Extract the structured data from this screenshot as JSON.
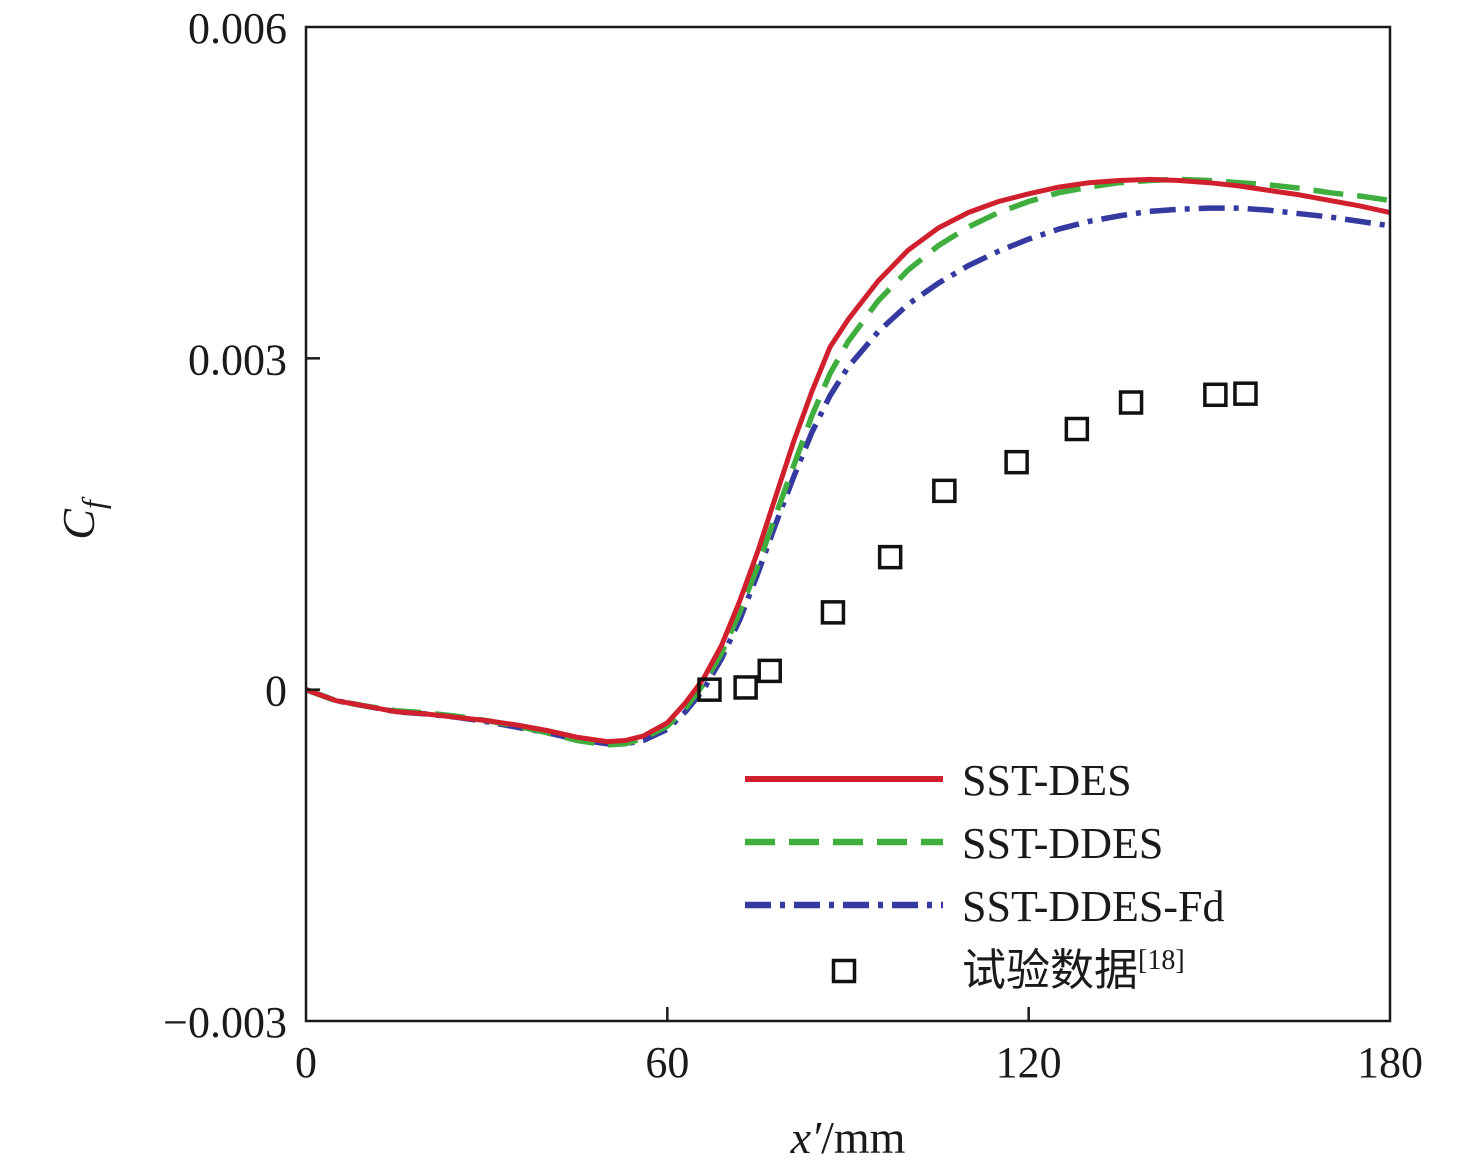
{
  "chart_data": {
    "type": "line",
    "title": "",
    "xlabel": {
      "var": "x′",
      "unit": "/mm"
    },
    "ylabel": {
      "var": "C",
      "sub": "f"
    },
    "xlim": [
      0,
      180
    ],
    "ylim": [
      -0.003,
      0.006
    ],
    "xticks": [
      0,
      60,
      120,
      180
    ],
    "xtick_labels": [
      "0",
      "60",
      "120",
      "180"
    ],
    "yticks": [
      -0.003,
      0,
      0.003,
      0.006
    ],
    "ytick_labels": [
      "−0.003",
      "0",
      "0.003",
      "0.006"
    ],
    "grid": false,
    "legend_position": "lower-right",
    "series": [
      {
        "name": "SST-DES",
        "style": "solid",
        "color": "#d0202e",
        "x": [
          0,
          5,
          10,
          15,
          20,
          25,
          30,
          35,
          40,
          45,
          50,
          53,
          56,
          60,
          63,
          66,
          69,
          72,
          75,
          78,
          81,
          84,
          87,
          90,
          95,
          100,
          105,
          110,
          115,
          120,
          125,
          130,
          135,
          140,
          145,
          150,
          155,
          160,
          165,
          170,
          175,
          180
        ],
        "y": [
          0,
          -0.0001,
          -0.00015,
          -0.0002,
          -0.00022,
          -0.00025,
          -0.00028,
          -0.00032,
          -0.00037,
          -0.00043,
          -0.00047,
          -0.00046,
          -0.00042,
          -0.0003,
          -0.00012,
          0.0001,
          0.0004,
          0.0008,
          0.00125,
          0.00175,
          0.00225,
          0.0027,
          0.0031,
          0.00335,
          0.0037,
          0.00398,
          0.00418,
          0.00432,
          0.00442,
          0.00449,
          0.00455,
          0.00459,
          0.00461,
          0.00462,
          0.00461,
          0.00459,
          0.00456,
          0.00452,
          0.00448,
          0.00443,
          0.00438,
          0.00432
        ]
      },
      {
        "name": "SST-DDES",
        "style": "dashed",
        "color": "#3fae3f",
        "x": [
          0,
          5,
          10,
          15,
          20,
          25,
          30,
          35,
          40,
          45,
          50,
          53,
          56,
          60,
          63,
          66,
          69,
          72,
          75,
          78,
          81,
          84,
          87,
          90,
          95,
          100,
          105,
          110,
          115,
          120,
          125,
          130,
          135,
          140,
          145,
          150,
          155,
          160,
          165,
          170,
          175,
          180
        ],
        "y": [
          0,
          -0.0001,
          -0.00015,
          -0.00019,
          -0.00021,
          -0.00024,
          -0.00028,
          -0.00033,
          -0.00039,
          -0.00046,
          -0.0005,
          -0.00049,
          -0.00044,
          -0.00033,
          -0.00017,
          5e-05,
          0.00033,
          0.0007,
          0.00112,
          0.00158,
          0.00203,
          0.00248,
          0.00286,
          0.00315,
          0.00352,
          0.0038,
          0.00402,
          0.00419,
          0.00432,
          0.00442,
          0.0045,
          0.00455,
          0.00459,
          0.00461,
          0.00462,
          0.00461,
          0.00459,
          0.00457,
          0.00454,
          0.0045,
          0.00447,
          0.00443
        ]
      },
      {
        "name": "SST-DDES-Fd",
        "style": "dashdot",
        "color": "#343aa0",
        "x": [
          0,
          5,
          10,
          15,
          20,
          25,
          30,
          35,
          40,
          45,
          50,
          53,
          56,
          60,
          63,
          66,
          69,
          72,
          75,
          78,
          81,
          84,
          87,
          90,
          95,
          100,
          105,
          110,
          115,
          120,
          125,
          130,
          135,
          140,
          145,
          150,
          155,
          160,
          165,
          170,
          175,
          180
        ],
        "y": [
          0,
          -0.0001,
          -0.00015,
          -0.0002,
          -0.00022,
          -0.00025,
          -0.00029,
          -0.00034,
          -0.00039,
          -0.00045,
          -0.00049,
          -0.00049,
          -0.00046,
          -0.00036,
          -0.0002,
          0.0,
          0.00028,
          0.00063,
          0.00105,
          0.0015,
          0.00193,
          0.00233,
          0.00266,
          0.00292,
          0.00324,
          0.00349,
          0.00368,
          0.00384,
          0.00397,
          0.00408,
          0.00417,
          0.00424,
          0.00429,
          0.00433,
          0.00435,
          0.00436,
          0.00436,
          0.00434,
          0.00431,
          0.00428,
          0.00424,
          0.0042
        ]
      },
      {
        "name": "试验数据[18]",
        "name_main": "试验数据",
        "name_ref": "[18]",
        "style": "markers",
        "marker": "square",
        "color": "#111111",
        "x": [
          67,
          73,
          77,
          87.5,
          97,
          106,
          118,
          128,
          137,
          151,
          156
        ],
        "y": [
          0.0,
          2e-05,
          0.00017,
          0.0007,
          0.0012,
          0.0018,
          0.00206,
          0.00236,
          0.0026,
          0.00267,
          0.00268
        ]
      }
    ]
  }
}
